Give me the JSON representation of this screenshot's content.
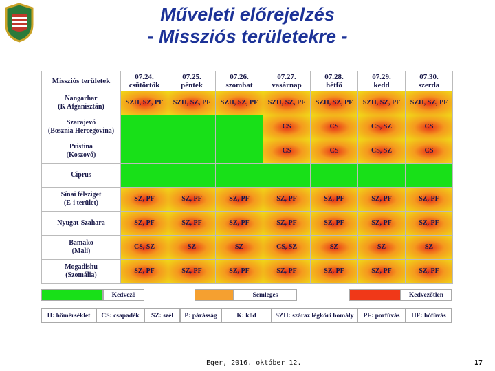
{
  "header": {
    "title_line1": "Műveleti előrejelzés",
    "title_line2": "- Missziós területekre -"
  },
  "table": {
    "corner": "Missziós területek",
    "columns": [
      {
        "date": "07.24.",
        "day": "csütörtök"
      },
      {
        "date": "07.25.",
        "day": "péntek"
      },
      {
        "date": "07.26.",
        "day": "szombat"
      },
      {
        "date": "07.27.",
        "day": "vasárnap"
      },
      {
        "date": "07.28.",
        "day": "hétfő"
      },
      {
        "date": "07.29.",
        "day": "kedd"
      },
      {
        "date": "07.30.",
        "day": "szerda"
      }
    ],
    "rows": [
      {
        "label": [
          "Nangarhar",
          "(K Afganisztán)"
        ],
        "cells": [
          {
            "text": "SZH, SZ, PF",
            "color": "#f59a1e"
          },
          {
            "text": "SZH, SZ, PF",
            "color": "#f59a1e"
          },
          {
            "text": "SZH, SZ, PF",
            "color": "#f59a1e"
          },
          {
            "text": "SZH, SZ, PF",
            "color": "#f59a1e"
          },
          {
            "text": "SZH, SZ, PF",
            "color": "#f59a1e"
          },
          {
            "text": "SZH, SZ, PF",
            "color": "#f59a1e"
          },
          {
            "text": "SZH, SZ, PF",
            "color": "#f59a1e"
          }
        ]
      },
      {
        "label": [
          "Szarajevó",
          "(Bosznia Hercegovina)"
        ],
        "cells": [
          {
            "color": "#18e018"
          },
          {
            "color": "#18e018"
          },
          {
            "color": "#18e018"
          },
          {
            "text": "CS",
            "color": "#f59a1e"
          },
          {
            "text": "CS",
            "color": "#f59a1e"
          },
          {
            "text": "CS, SZ",
            "color": "#f59a1e"
          },
          {
            "text": "CS",
            "color": "#f59a1e"
          }
        ]
      },
      {
        "label": [
          "Pristina",
          "(Koszovó)"
        ],
        "cells": [
          {
            "color": "#18e018"
          },
          {
            "color": "#18e018"
          },
          {
            "color": "#18e018"
          },
          {
            "text": "CS",
            "color": "#f59a1e"
          },
          {
            "text": "CS",
            "color": "#f59a1e"
          },
          {
            "text": "CS, SZ",
            "color": "#f59a1e"
          },
          {
            "text": "CS",
            "color": "#f59a1e"
          }
        ]
      },
      {
        "label": [
          "Ciprus"
        ],
        "cells": [
          {
            "color": "#18e018"
          },
          {
            "color": "#18e018"
          },
          {
            "color": "#18e018"
          },
          {
            "color": "#18e018"
          },
          {
            "color": "#18e018"
          },
          {
            "color": "#18e018"
          },
          {
            "color": "#18e018"
          }
        ]
      },
      {
        "label": [
          "Sínai félsziget",
          "(E-i terület)"
        ],
        "cells": [
          {
            "text": "SZ, PF",
            "color": "#f59a1e"
          },
          {
            "text": "SZ, PF",
            "color": "#f59a1e"
          },
          {
            "text": "SZ, PF",
            "color": "#f59a1e"
          },
          {
            "text": "SZ, PF",
            "color": "#f59a1e"
          },
          {
            "text": "SZ, PF",
            "color": "#f59a1e"
          },
          {
            "text": "SZ, PF",
            "color": "#f59a1e"
          },
          {
            "text": "SZ, PF",
            "color": "#f59a1e"
          }
        ]
      },
      {
        "label": [
          "Nyugat-Szahara"
        ],
        "cells": [
          {
            "text": "SZ, PF",
            "color": "#f59a1e"
          },
          {
            "text": "SZ, PF",
            "color": "#f59a1e"
          },
          {
            "text": "SZ, PF",
            "color": "#f59a1e"
          },
          {
            "text": "SZ, PF",
            "color": "#f59a1e"
          },
          {
            "text": "SZ, PF",
            "color": "#f59a1e"
          },
          {
            "text": "SZ, PF",
            "color": "#f59a1e"
          },
          {
            "text": "SZ, PF",
            "color": "#f59a1e"
          }
        ]
      },
      {
        "label": [
          "Bamako",
          "(Mali)"
        ],
        "cells": [
          {
            "text": "CS, SZ",
            "color": "#f59a1e"
          },
          {
            "text": "SZ",
            "color": "#f59a1e"
          },
          {
            "text": "SZ",
            "color": "#f59a1e"
          },
          {
            "text": "CS, SZ",
            "color": "#f59a1e"
          },
          {
            "text": "SZ",
            "color": "#f59a1e"
          },
          {
            "text": "SZ",
            "color": "#f59a1e"
          },
          {
            "text": "SZ",
            "color": "#f59a1e"
          }
        ]
      },
      {
        "label": [
          "Mogadishu",
          "(Szomália)"
        ],
        "cells": [
          {
            "text": "SZ, PF",
            "color": "#f59a1e"
          },
          {
            "text": "SZ, PF",
            "color": "#f59a1e"
          },
          {
            "text": "SZ, PF",
            "color": "#f59a1e"
          },
          {
            "text": "SZ, PF",
            "color": "#f59a1e"
          },
          {
            "text": "SZ, PF",
            "color": "#f59a1e"
          },
          {
            "text": "SZ, PF",
            "color": "#f59a1e"
          },
          {
            "text": "SZ, PF",
            "color": "#f59a1e"
          }
        ]
      }
    ]
  },
  "legend": [
    {
      "label": "Kedvező",
      "color": "#18e018"
    },
    {
      "label": "Semleges",
      "color": "#f5a030"
    },
    {
      "label": "Kedvezőtlen",
      "color": "#f03818"
    }
  ],
  "abbreviations": [
    "H: hőmérséklet",
    "CS: csapadék",
    "SZ: szél",
    "P: párásság",
    "K: köd",
    "SZH: száraz légköri homály",
    "PF: porfúvás",
    "HF: hófúvás"
  ],
  "footer": {
    "text": "Eger, 2016. október 12.",
    "page": "17"
  }
}
